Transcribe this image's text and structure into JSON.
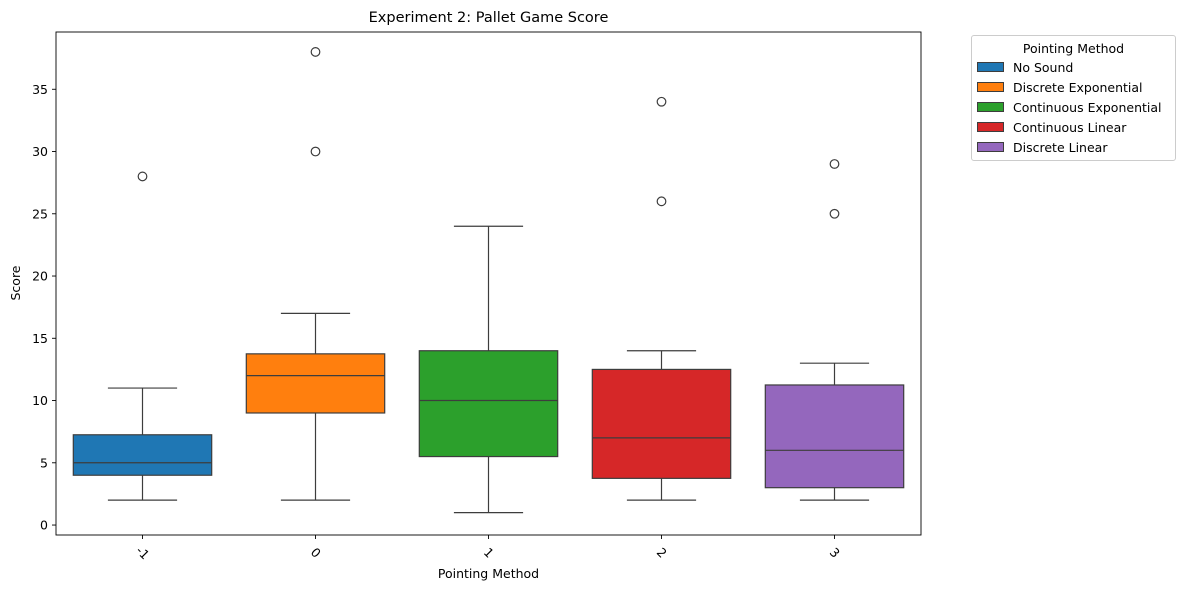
{
  "chart_data": {
    "type": "box",
    "title": "Experiment 2: Pallet Game Score",
    "xlabel": "Pointing Method",
    "ylabel": "Score",
    "ylim": [
      -0.8,
      39.6
    ],
    "yticks": [
      0,
      5,
      10,
      15,
      20,
      25,
      30,
      35
    ],
    "grid": false,
    "legend": {
      "title": "Pointing Method",
      "placement": "outside-right-top",
      "entries": [
        "No Sound",
        "Discrete Exponential",
        "Continuous Exponential",
        "Continuous Linear",
        "Discrete Linear"
      ]
    },
    "categories": [
      "-1",
      "0",
      "1",
      "2",
      "3"
    ],
    "series": [
      {
        "name": "No Sound",
        "color": "#1f77b4",
        "whisker_low": 2,
        "q1": 4,
        "median": 5,
        "q3": 7.25,
        "whisker_high": 11,
        "outliers": [
          28
        ]
      },
      {
        "name": "Discrete Exponential",
        "color": "#ff7f0e",
        "whisker_low": 2,
        "q1": 9,
        "median": 12,
        "q3": 13.75,
        "whisker_high": 17,
        "outliers": [
          30,
          38
        ]
      },
      {
        "name": "Continuous Exponential",
        "color": "#2ca02c",
        "whisker_low": 1,
        "q1": 5.5,
        "median": 10,
        "q3": 14,
        "whisker_high": 24,
        "outliers": []
      },
      {
        "name": "Continuous Linear",
        "color": "#d62728",
        "whisker_low": 2,
        "q1": 3.75,
        "median": 7,
        "q3": 12.5,
        "whisker_high": 14,
        "outliers": [
          26,
          34
        ]
      },
      {
        "name": "Discrete Linear",
        "color": "#9467bd",
        "whisker_low": 2,
        "q1": 3,
        "median": 6,
        "q3": 11.25,
        "whisker_high": 13,
        "outliers": [
          25,
          29
        ]
      }
    ]
  }
}
